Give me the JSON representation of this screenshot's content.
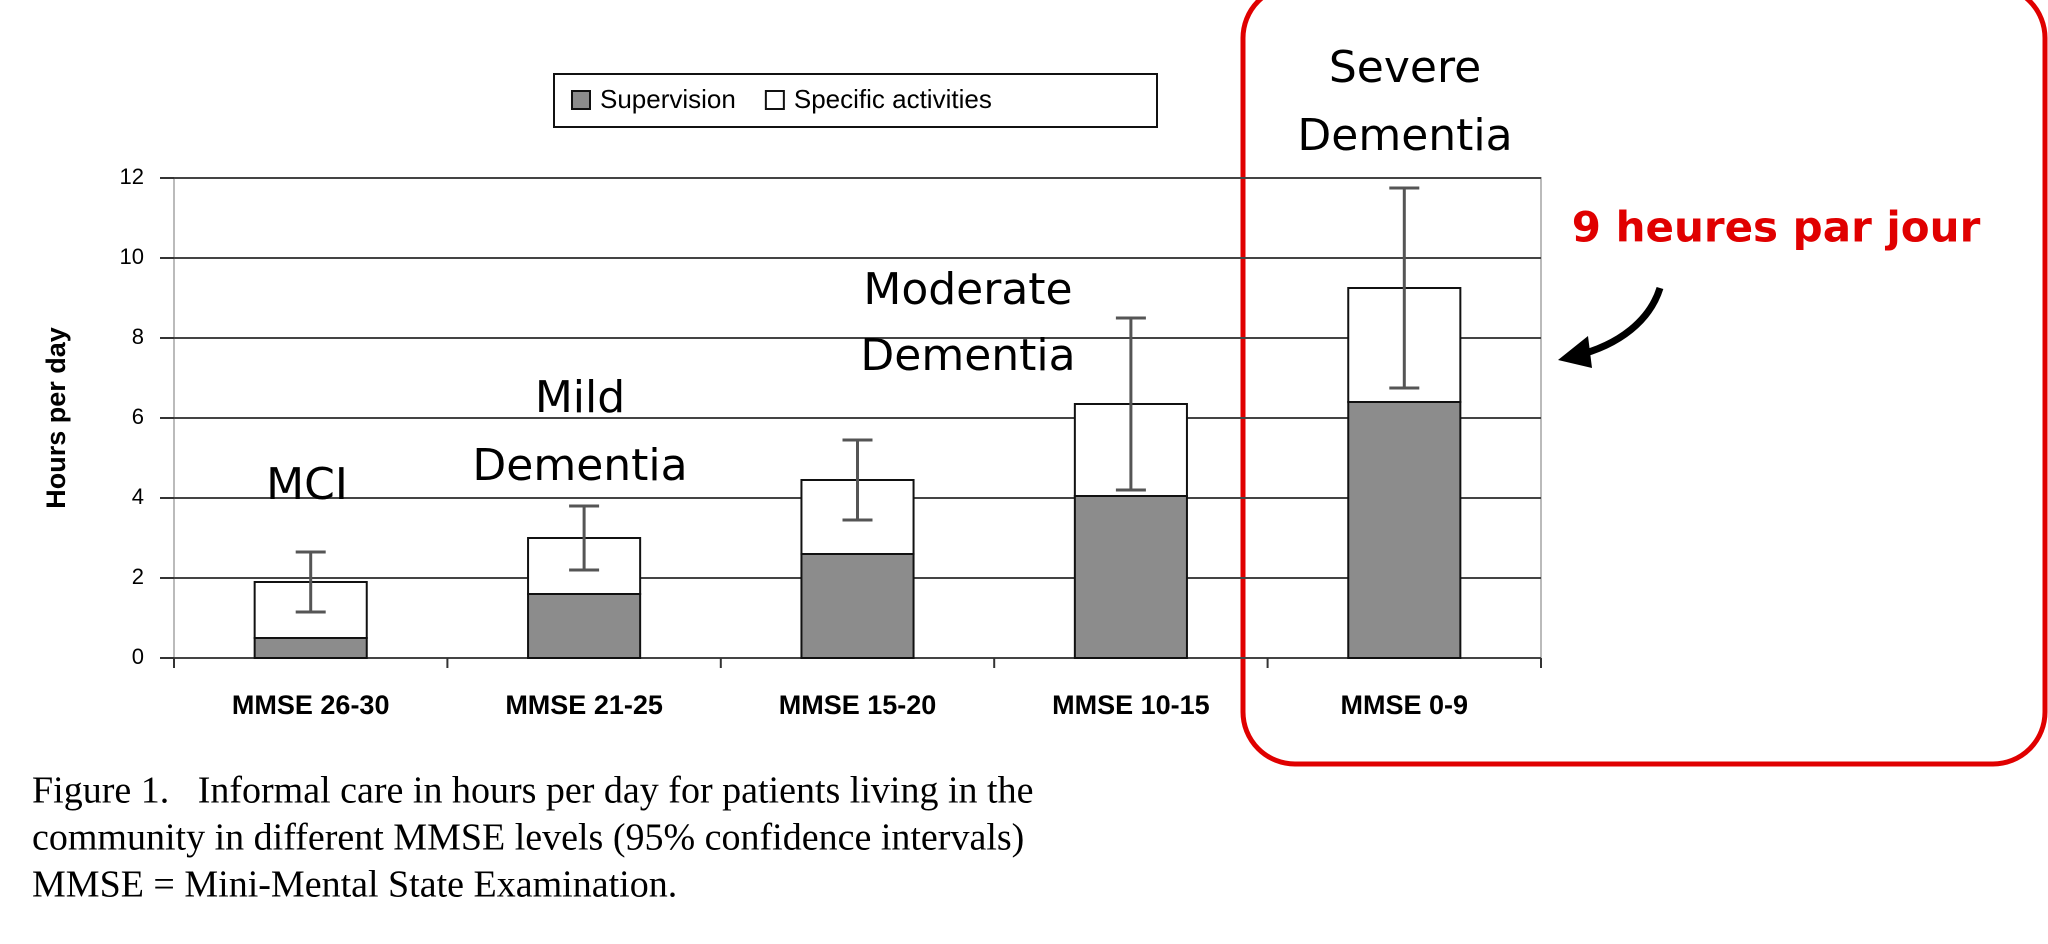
{
  "chart_data": {
    "type": "stacked_bar",
    "y_label": "Hours per day",
    "categories": [
      "MMSE 26-30",
      "MMSE 21-25",
      "MMSE 15-20",
      "MMSE 10-15",
      "MMSE 0-9"
    ],
    "series": [
      {
        "name": "Supervision",
        "color": "#8c8c8c",
        "values": [
          0.5,
          1.6,
          2.6,
          4.05,
          6.4
        ]
      },
      {
        "name": "Specific activities",
        "color": "#ffffff",
        "values": [
          1.4,
          1.4,
          1.85,
          2.3,
          2.85
        ]
      }
    ],
    "error": [
      0.75,
      0.8,
      1.0,
      2.15,
      2.5
    ],
    "ylim": [
      0,
      12
    ],
    "yticks": [
      0,
      2,
      4,
      6,
      8,
      10,
      12
    ],
    "grid": true,
    "annotations": [
      [
        "MCI"
      ],
      [
        "Mild",
        "Dementia"
      ],
      [
        "Moderate",
        "Dementia"
      ],
      [
        "Severe",
        "Dementia"
      ]
    ],
    "callout": "9 heures par jour",
    "caption": [
      "Figure 1.   Informal care in hours per day for patients living in the",
      "community in different MMSE levels (95% confidence intervals)",
      "MMSE = Mini-Mental State Examination."
    ]
  }
}
